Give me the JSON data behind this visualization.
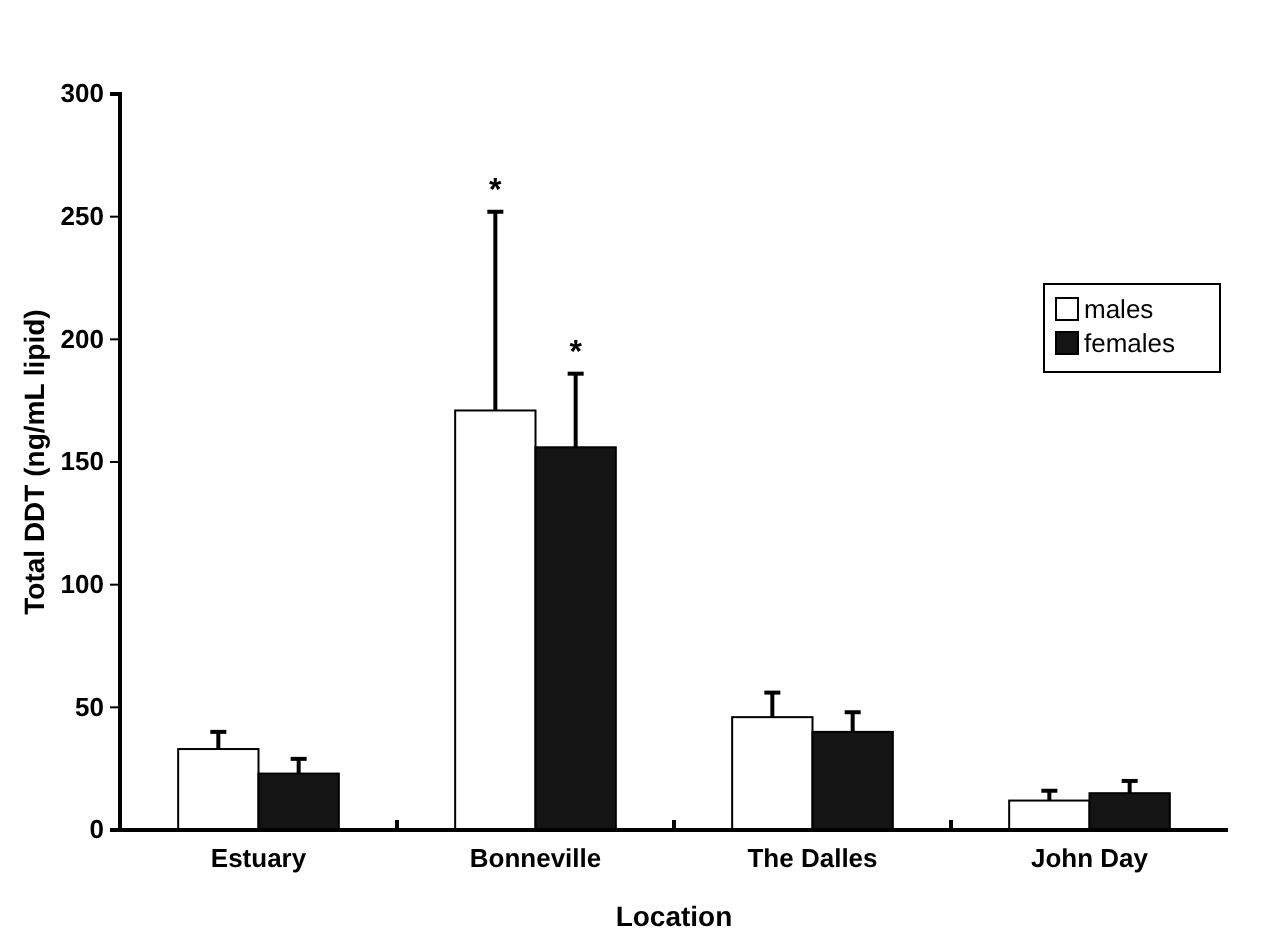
{
  "chart_data": {
    "type": "bar",
    "xlabel": "Location",
    "ylabel": "Total DDT (ng/mL lipid)",
    "categories": [
      "Estuary",
      "Bonneville",
      "The Dalles",
      "John Day"
    ],
    "series": [
      {
        "name": "males",
        "color": "#ffffff",
        "values": [
          33,
          171,
          46,
          12
        ],
        "errors": [
          7,
          81,
          10,
          4
        ]
      },
      {
        "name": "females",
        "color": "#141414",
        "values": [
          23,
          156,
          40,
          15
        ],
        "errors": [
          6,
          30,
          8,
          5
        ]
      }
    ],
    "ylim": [
      0,
      300
    ],
    "yticks": [
      0,
      50,
      100,
      150,
      200,
      250,
      300
    ],
    "legend": "top right",
    "annotations": [
      "*",
      "*"
    ]
  }
}
